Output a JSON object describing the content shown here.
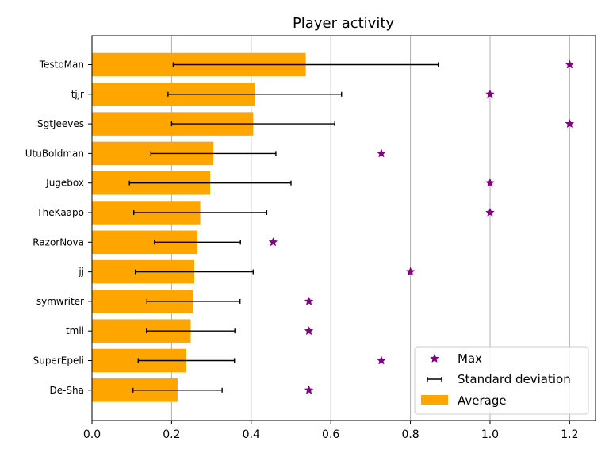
{
  "chart_data": {
    "type": "bar",
    "orientation": "horizontal",
    "title": "Player activity",
    "xlabel": "",
    "ylabel": "",
    "xlim": [
      0,
      1.265
    ],
    "x_ticks": [
      "0.0",
      "0.2",
      "0.4",
      "0.6",
      "0.8",
      "1.0",
      "1.2"
    ],
    "grid": "x-major",
    "legend_position": "lower-right",
    "categories": [
      "TestoMan",
      "tjjr",
      "SgtJeeves",
      "UtuBoldman",
      "Jugebox",
      "TheKaapo",
      "RazorNova",
      "jj",
      "symwriter",
      "tmli",
      "SuperEpeli",
      "De-Sha"
    ],
    "series": [
      {
        "name": "Average",
        "kind": "bar",
        "color": "#ffa500",
        "values": [
          0.537,
          0.409,
          0.405,
          0.305,
          0.297,
          0.272,
          0.265,
          0.257,
          0.255,
          0.248,
          0.237,
          0.215
        ]
      },
      {
        "name": "Standard deviation",
        "kind": "errorbar",
        "color": "#000000",
        "values": [
          0.333,
          0.218,
          0.205,
          0.157,
          0.203,
          0.167,
          0.108,
          0.148,
          0.117,
          0.111,
          0.121,
          0.112
        ]
      },
      {
        "name": "Max",
        "kind": "marker",
        "marker": "star",
        "color": "#800080",
        "values": [
          1.2,
          1.0,
          1.2,
          0.727,
          1.0,
          1.0,
          0.455,
          0.8,
          0.545,
          0.545,
          0.727,
          0.545
        ]
      }
    ]
  }
}
